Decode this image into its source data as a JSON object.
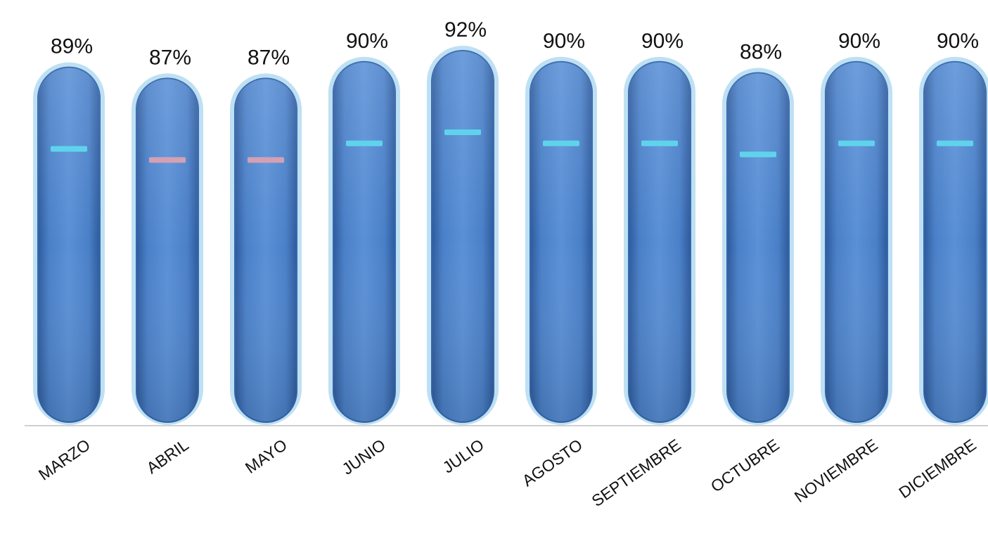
{
  "chart_data": {
    "type": "bar",
    "categories": [
      "MARZO",
      "ABRIL",
      "MAYO",
      "JUNIO",
      "JULIO",
      "AGOSTO",
      "SEPTIEMBRE",
      "OCTUBRE",
      "NOVIEMBRE",
      "DICIEMBRE"
    ],
    "values": [
      89,
      87,
      87,
      90,
      92,
      90,
      90,
      88,
      90,
      90
    ],
    "value_labels": [
      "89%",
      "87%",
      "87%",
      "90%",
      "92%",
      "90%",
      "90%",
      "88%",
      "90%",
      "90%"
    ],
    "unit": "%",
    "ylim": [
      0,
      92
    ],
    "grid": false,
    "legend": "none",
    "title": "",
    "xlabel": "",
    "ylabel": "",
    "target_markers": [
      {
        "category": "MARZO",
        "status": "met"
      },
      {
        "category": "ABRIL",
        "status": "below"
      },
      {
        "category": "MAYO",
        "status": "below"
      },
      {
        "category": "JUNIO",
        "status": "met"
      },
      {
        "category": "JULIO",
        "status": "met"
      },
      {
        "category": "AGOSTO",
        "status": "met"
      },
      {
        "category": "SEPTIEMBRE",
        "status": "met"
      },
      {
        "category": "OCTUBRE",
        "status": "met"
      },
      {
        "category": "NOVIEMBRE",
        "status": "met"
      },
      {
        "category": "DICIEMBRE",
        "status": "met"
      }
    ],
    "colors": {
      "bar_fill": "#4f84cc",
      "bar_fill_dark": "#3566ad",
      "bar_glow": "#a8d6ef",
      "marker_met": "#5fd3ec",
      "marker_below": "#d4a0b4",
      "axis": "#d0d0d0",
      "text": "#111111"
    }
  }
}
